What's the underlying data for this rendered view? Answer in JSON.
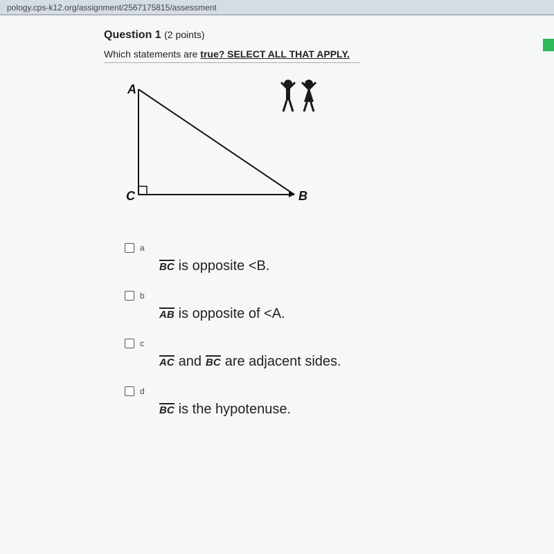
{
  "url_bar": "pology.cps-k12.org/assignment/2567175815/assessment",
  "question": {
    "number_label": "Question 1",
    "points_label": "(2 points)",
    "prompt_prefix": "Which statements are ",
    "prompt_underlined": "true? SELECT ALL THAT APPLY."
  },
  "triangle": {
    "A_label": "A",
    "B_label": "B",
    "C_label": "C",
    "A": [
      30,
      8
    ],
    "B": [
      255,
      160
    ],
    "C": [
      30,
      160
    ],
    "right_angle_size": 12,
    "stroke": "#111111",
    "stroke_width": 2
  },
  "people_icons": {
    "fill": "#1a1a1a"
  },
  "options": [
    {
      "letter": "a",
      "segments": [
        "BC"
      ],
      "text_parts": [
        "is opposite <B."
      ]
    },
    {
      "letter": "b",
      "segments": [
        "AB"
      ],
      "text_parts": [
        "is opposite of <A."
      ]
    },
    {
      "letter": "c",
      "segments": [
        "AC",
        "BC"
      ],
      "text_parts": [
        "and",
        "are adjacent sides."
      ]
    },
    {
      "letter": "d",
      "segments": [
        "BC"
      ],
      "text_parts": [
        "is the hypotenuse."
      ]
    }
  ],
  "colors": {
    "page_bg": "#f5f7f9",
    "outer_bg": "#b8bcc0",
    "green_tab": "#2eb85c"
  }
}
